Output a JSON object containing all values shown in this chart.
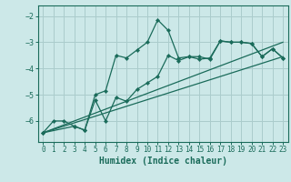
{
  "xlabel": "Humidex (Indice chaleur)",
  "bg_color": "#cce8e8",
  "line_color": "#1a6b5a",
  "grid_color": "#aacccc",
  "xlim": [
    -0.5,
    23.5
  ],
  "ylim": [
    -6.8,
    -1.6
  ],
  "yticks": [
    -6,
    -5,
    -4,
    -3,
    -2
  ],
  "xticks": [
    0,
    1,
    2,
    3,
    4,
    5,
    6,
    7,
    8,
    9,
    10,
    11,
    12,
    13,
    14,
    15,
    16,
    17,
    18,
    19,
    20,
    21,
    22,
    23
  ],
  "curve1_x": [
    0,
    1,
    2,
    3,
    4,
    5,
    6,
    7,
    8,
    9,
    10,
    11,
    12,
    13,
    14,
    15,
    16,
    17,
    18,
    19,
    20,
    21,
    22,
    23
  ],
  "curve1_y": [
    -6.45,
    -6.0,
    -6.0,
    -6.2,
    -6.35,
    -5.0,
    -4.85,
    -3.5,
    -3.6,
    -3.3,
    -3.0,
    -2.15,
    -2.55,
    -3.6,
    -3.55,
    -3.65,
    -3.6,
    -2.95,
    -3.0,
    -3.0,
    -3.05,
    -3.55,
    -3.25,
    -3.6
  ],
  "curve2_x": [
    0,
    3,
    4,
    5,
    6,
    7,
    8,
    9,
    10,
    11,
    12,
    13,
    14,
    15,
    16,
    17,
    18,
    19,
    20,
    21,
    22,
    23
  ],
  "curve2_y": [
    -6.45,
    -6.2,
    -6.35,
    -5.2,
    -6.0,
    -5.1,
    -5.25,
    -4.8,
    -4.55,
    -4.3,
    -3.5,
    -3.7,
    -3.55,
    -3.55,
    -3.65,
    -2.95,
    -3.0,
    -3.0,
    -3.05,
    -3.55,
    -3.25,
    -3.6
  ],
  "line1_x": [
    0,
    23
  ],
  "line1_y": [
    -6.45,
    -3.55
  ],
  "line2_x": [
    0,
    23
  ],
  "line2_y": [
    -6.45,
    -3.0
  ]
}
